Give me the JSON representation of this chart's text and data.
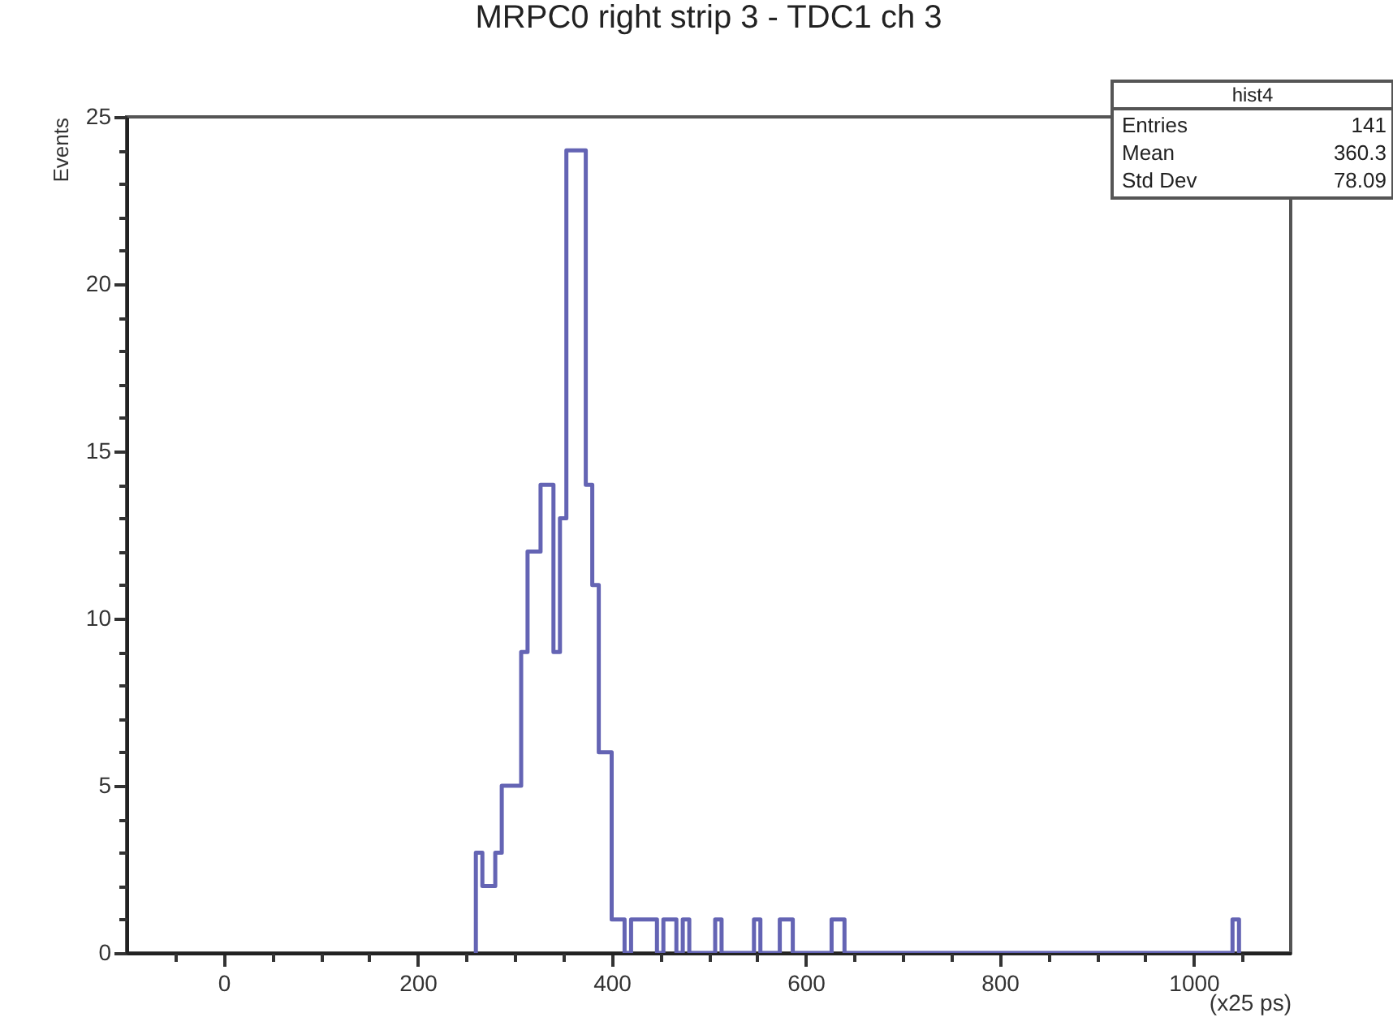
{
  "chart_data": {
    "type": "histogram",
    "title": "MRPC0 right strip 3 - TDC1 ch 3",
    "xlabel": "(x25 ps)",
    "ylabel": "Events",
    "bins": [
      260,
      266.7,
      280,
      286.7,
      306.7,
      313.3,
      326.7,
      340,
      346.7,
      353.3,
      373.3,
      380,
      386.7,
      400,
      413.3,
      420,
      446.7,
      453.3,
      466.7,
      473.3,
      480,
      506.7,
      513.3,
      546.7,
      553.3,
      573.3,
      586.7,
      626.7,
      640,
      1040,
      1046.7
    ],
    "values": [
      3,
      2,
      3,
      5,
      9,
      12,
      14,
      9,
      13,
      24,
      14,
      11,
      6,
      1,
      0,
      1,
      0,
      1,
      0,
      1,
      0,
      1,
      0,
      1,
      0,
      1,
      0,
      1,
      0,
      1
    ],
    "color": "#6464b4",
    "xlim": [
      -100,
      1100
    ],
    "xticks": [
      {
        "value": -50,
        "label": null
      },
      0,
      {
        "value": 50,
        "label": null
      },
      {
        "value": 100,
        "label": null
      },
      {
        "value": 150,
        "label": null
      },
      200,
      {
        "value": 250,
        "label": null
      },
      {
        "value": 300,
        "label": null
      },
      {
        "value": 350,
        "label": null
      },
      400,
      {
        "value": 450,
        "label": null
      },
      {
        "value": 500,
        "label": null
      },
      {
        "value": 550,
        "label": null
      },
      600,
      {
        "value": 650,
        "label": null
      },
      {
        "value": 700,
        "label": null
      },
      {
        "value": 750,
        "label": null
      },
      800,
      {
        "value": 850,
        "label": null
      },
      {
        "value": 900,
        "label": null
      },
      {
        "value": 950,
        "label": null
      },
      1000,
      {
        "value": 1050,
        "label": null
      }
    ],
    "ylim": [
      0,
      25
    ],
    "yticks": [
      0,
      {
        "value": 1,
        "label": null
      },
      {
        "value": 2,
        "label": null
      },
      {
        "value": 3,
        "label": null
      },
      {
        "value": 4,
        "label": null
      },
      5,
      {
        "value": 6,
        "label": null
      },
      {
        "value": 7,
        "label": null
      },
      {
        "value": 8,
        "label": null
      },
      {
        "value": 9,
        "label": null
      },
      10,
      {
        "value": 11,
        "label": null
      },
      {
        "value": 12,
        "label": null
      },
      {
        "value": 13,
        "label": null
      },
      {
        "value": 14,
        "label": null
      },
      15,
      {
        "value": 16,
        "label": null
      },
      {
        "value": 17,
        "label": null
      },
      {
        "value": 18,
        "label": null
      },
      {
        "value": 19,
        "label": null
      },
      20,
      {
        "value": 21,
        "label": null
      },
      {
        "value": 22,
        "label": null
      },
      {
        "value": 23,
        "label": null
      },
      {
        "value": 24,
        "label": null
      },
      25
    ],
    "grid": false,
    "annotations": [
      "hist4",
      "Entries",
      "141",
      "Mean",
      "360.3",
      "Std Dev",
      "78.09"
    ]
  }
}
